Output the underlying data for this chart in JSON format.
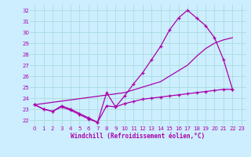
{
  "xlabel": "Windchill (Refroidissement éolien,°C)",
  "bg_color": "#cceeff",
  "grid_color": "#aadddd",
  "line_color": "#aa00aa",
  "xlim": [
    -0.5,
    23.5
  ],
  "ylim": [
    21.5,
    32.5
  ],
  "yticks": [
    22,
    23,
    24,
    25,
    26,
    27,
    28,
    29,
    30,
    31,
    32
  ],
  "xticks": [
    0,
    1,
    2,
    3,
    4,
    5,
    6,
    7,
    8,
    9,
    10,
    11,
    12,
    13,
    14,
    15,
    16,
    17,
    18,
    19,
    20,
    21,
    22,
    23
  ],
  "line_upper": [
    [
      0,
      23.4
    ],
    [
      1,
      23.0
    ],
    [
      2,
      22.8
    ],
    [
      3,
      23.3
    ],
    [
      4,
      23.0
    ],
    [
      5,
      22.6
    ],
    [
      6,
      22.2
    ],
    [
      7,
      21.8
    ],
    [
      8,
      24.5
    ],
    [
      9,
      23.2
    ],
    [
      10,
      24.2
    ],
    [
      11,
      25.3
    ],
    [
      12,
      26.3
    ],
    [
      13,
      27.5
    ],
    [
      14,
      28.7
    ],
    [
      15,
      30.2
    ],
    [
      16,
      31.3
    ],
    [
      17,
      32.0
    ],
    [
      18,
      31.3
    ],
    [
      19,
      30.6
    ],
    [
      20,
      29.5
    ],
    [
      21,
      27.5
    ],
    [
      22,
      24.8
    ]
  ],
  "line_diag": [
    [
      0,
      23.4
    ],
    [
      10,
      24.5
    ],
    [
      14,
      25.5
    ],
    [
      16,
      26.5
    ],
    [
      17,
      27.0
    ],
    [
      18,
      27.8
    ],
    [
      19,
      28.5
    ],
    [
      20,
      29.0
    ],
    [
      21,
      29.3
    ],
    [
      22,
      29.5
    ]
  ],
  "line_flat": [
    [
      0,
      23.4
    ],
    [
      1,
      23.0
    ],
    [
      2,
      22.8
    ],
    [
      3,
      23.2
    ],
    [
      4,
      22.9
    ],
    [
      5,
      22.5
    ],
    [
      6,
      22.1
    ],
    [
      7,
      21.8
    ],
    [
      8,
      23.3
    ],
    [
      9,
      23.2
    ],
    [
      10,
      23.5
    ],
    [
      11,
      23.7
    ],
    [
      12,
      23.9
    ],
    [
      13,
      24.0
    ],
    [
      14,
      24.1
    ],
    [
      15,
      24.2
    ],
    [
      16,
      24.3
    ],
    [
      17,
      24.4
    ],
    [
      18,
      24.5
    ],
    [
      19,
      24.6
    ],
    [
      20,
      24.7
    ],
    [
      21,
      24.8
    ],
    [
      22,
      24.8
    ]
  ]
}
